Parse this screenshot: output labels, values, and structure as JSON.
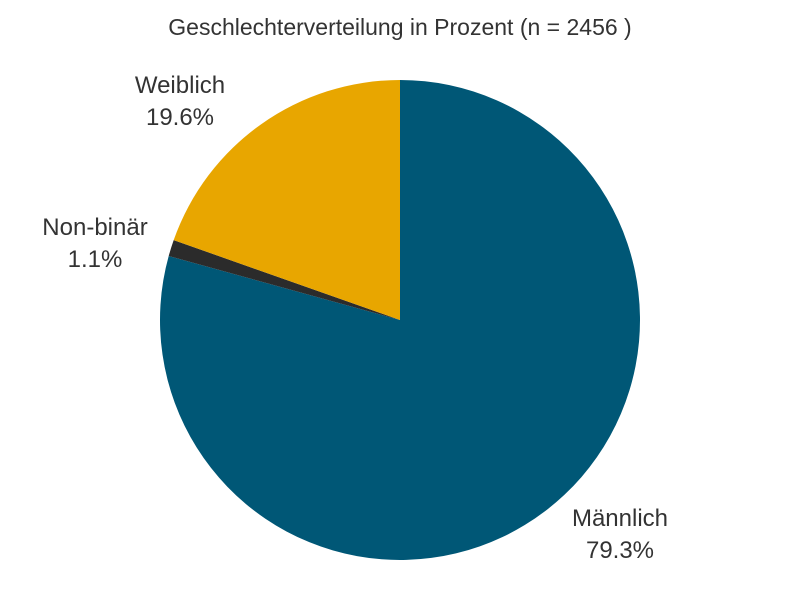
{
  "chart_data": {
    "type": "pie",
    "title": "Geschlechterverteilung in Prozent (n = 2456 )",
    "start_angle": "12 o'clock, clockwise",
    "slices": [
      {
        "label": "Männlich",
        "value": 79.3,
        "value_label": "79.3%",
        "color": "#005776"
      },
      {
        "label": "Non-binär",
        "value": 1.1,
        "value_label": "1.1%",
        "color": "#2b2b2b"
      },
      {
        "label": "Weiblich",
        "value": 19.6,
        "value_label": "19.6%",
        "color": "#e8a600"
      }
    ],
    "n": 2456,
    "legend": "none (direct labels)"
  }
}
